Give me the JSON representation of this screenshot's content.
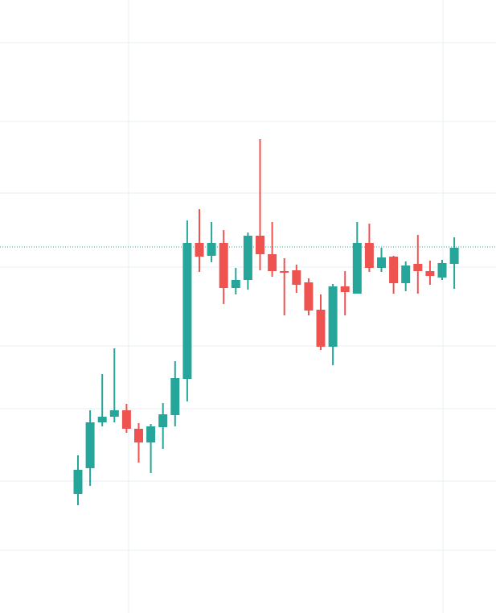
{
  "colors": {
    "up": "#26a69a",
    "down": "#ef5350",
    "grid": "#e4f1f4",
    "last_price_line": "#26a69a",
    "background": "#ffffff"
  },
  "chart_data": {
    "type": "candlestick",
    "title": "",
    "xlabel": "",
    "ylabel": "",
    "grid": true,
    "y_axis_labels_visible": false,
    "x_axis_labels_visible": false,
    "ylim": [
      0,
      762
    ],
    "last_price": 455,
    "candles": [
      {
        "o": 148,
        "c": 178,
        "h": 196,
        "l": 134
      },
      {
        "o": 180,
        "c": 237,
        "h": 252,
        "l": 158
      },
      {
        "o": 237,
        "c": 244,
        "h": 297,
        "l": 232
      },
      {
        "o": 244,
        "c": 252,
        "h": 329,
        "l": 237
      },
      {
        "o": 252,
        "c": 229,
        "h": 260,
        "l": 224
      },
      {
        "o": 229,
        "c": 212,
        "h": 236,
        "l": 187
      },
      {
        "o": 212,
        "c": 232,
        "h": 235,
        "l": 174
      },
      {
        "o": 231,
        "c": 247,
        "h": 261,
        "l": 204
      },
      {
        "o": 246,
        "c": 292,
        "h": 313,
        "l": 232
      },
      {
        "o": 291,
        "c": 460,
        "h": 488,
        "l": 263
      },
      {
        "o": 460,
        "c": 443,
        "h": 502,
        "l": 424
      },
      {
        "o": 444,
        "c": 460,
        "h": 486,
        "l": 436
      },
      {
        "o": 460,
        "c": 404,
        "h": 476,
        "l": 384
      },
      {
        "o": 404,
        "c": 414,
        "h": 429,
        "l": 396
      },
      {
        "o": 414,
        "c": 469,
        "h": 473,
        "l": 402
      },
      {
        "o": 469,
        "c": 446,
        "h": 589,
        "l": 426
      },
      {
        "o": 446,
        "c": 425,
        "h": 486,
        "l": 418
      },
      {
        "o": 425,
        "c": 424,
        "h": 441,
        "l": 370
      },
      {
        "o": 426,
        "c": 408,
        "h": 433,
        "l": 398
      },
      {
        "o": 411,
        "c": 376,
        "h": 416,
        "l": 370
      },
      {
        "o": 377,
        "c": 331,
        "h": 396,
        "l": 327
      },
      {
        "o": 331,
        "c": 406,
        "h": 409,
        "l": 308
      },
      {
        "o": 406,
        "c": 399,
        "h": 425,
        "l": 370
      },
      {
        "o": 397,
        "c": 460,
        "h": 486,
        "l": 397
      },
      {
        "o": 460,
        "c": 429,
        "h": 484,
        "l": 424
      },
      {
        "o": 429,
        "c": 442,
        "h": 454,
        "l": 424
      },
      {
        "o": 443,
        "c": 410,
        "h": 444,
        "l": 397
      },
      {
        "o": 410,
        "c": 432,
        "h": 437,
        "l": 400
      },
      {
        "o": 434,
        "c": 425,
        "h": 470,
        "l": 397
      },
      {
        "o": 425,
        "c": 419,
        "h": 438,
        "l": 408
      },
      {
        "o": 417,
        "c": 435,
        "h": 439,
        "l": 414
      },
      {
        "o": 434,
        "c": 454,
        "h": 467,
        "l": 403
      }
    ]
  }
}
